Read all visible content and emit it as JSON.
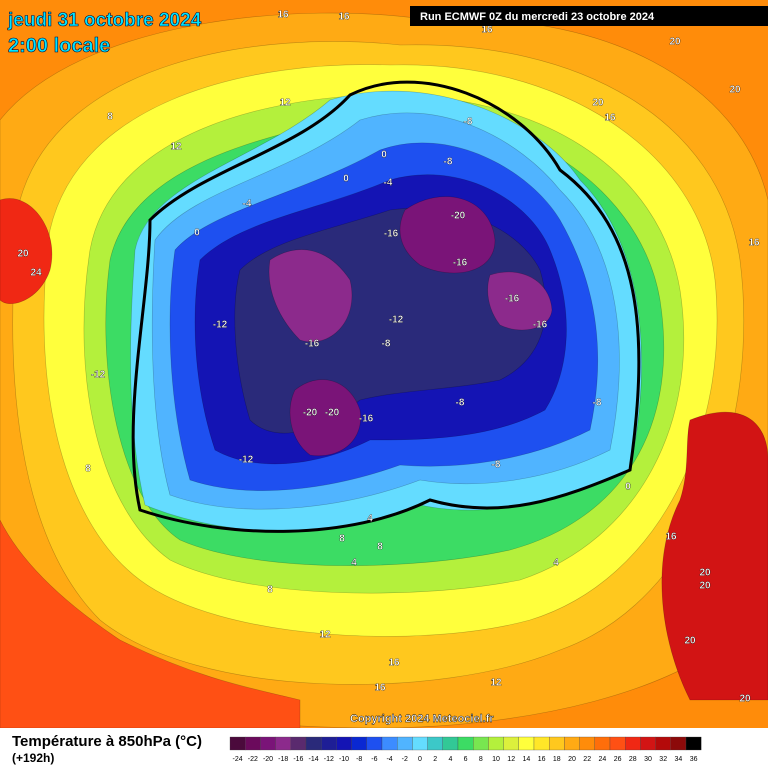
{
  "header": {
    "date": "jeudi 31 octobre 2024",
    "time": "2:00 locale",
    "run": "Run ECMWF 0Z du mercredi 23 octobre 2024"
  },
  "copyright": "Copyright 2024 Meteociel.fr",
  "legend": {
    "title": "Température à 850hPa (°C)",
    "lead": "(+192h)",
    "ticks": [
      -24,
      -22,
      -20,
      -18,
      -16,
      -14,
      -12,
      -10,
      -8,
      -6,
      -4,
      -2,
      0,
      2,
      4,
      6,
      8,
      10,
      12,
      14,
      16,
      18,
      20,
      22,
      24,
      26,
      28,
      30,
      32,
      34,
      36
    ],
    "colors": [
      "#4b0a3c",
      "#6b0a5c",
      "#7a1478",
      "#8c2a8c",
      "#5a2a6e",
      "#2a2a7a",
      "#1e1e96",
      "#1414b4",
      "#0a28d2",
      "#1e50f0",
      "#3c8cff",
      "#50b4ff",
      "#64dcff",
      "#3cc8c8",
      "#32c896",
      "#3cdc64",
      "#78e650",
      "#b4f03c",
      "#dcf03c",
      "#ffff3c",
      "#ffe628",
      "#ffc81e",
      "#ffaa14",
      "#ff8c0a",
      "#ff6e0a",
      "#ff5014",
      "#f02814",
      "#d21414",
      "#b40a0a",
      "#8c0a0a",
      "#000000"
    ]
  },
  "contour_labels": [
    "16",
    "16",
    "16",
    "20",
    "20",
    "20",
    "16",
    "8",
    "12",
    "12",
    "20",
    "24",
    "16",
    "0",
    "-4",
    "0",
    "-4",
    "0",
    "-8",
    "-8",
    "-20",
    "-16",
    "-16",
    "-16",
    "-16",
    "-12",
    "-12",
    "-16",
    "-8",
    "-12",
    "-8",
    "-20",
    "-20",
    "-16",
    "-8",
    "-8",
    "-12",
    "0",
    "4",
    "8",
    "8",
    "4",
    "4",
    "16",
    "20",
    "20",
    "8",
    "8",
    "16",
    "12",
    "16",
    "20",
    "20",
    "12"
  ]
}
